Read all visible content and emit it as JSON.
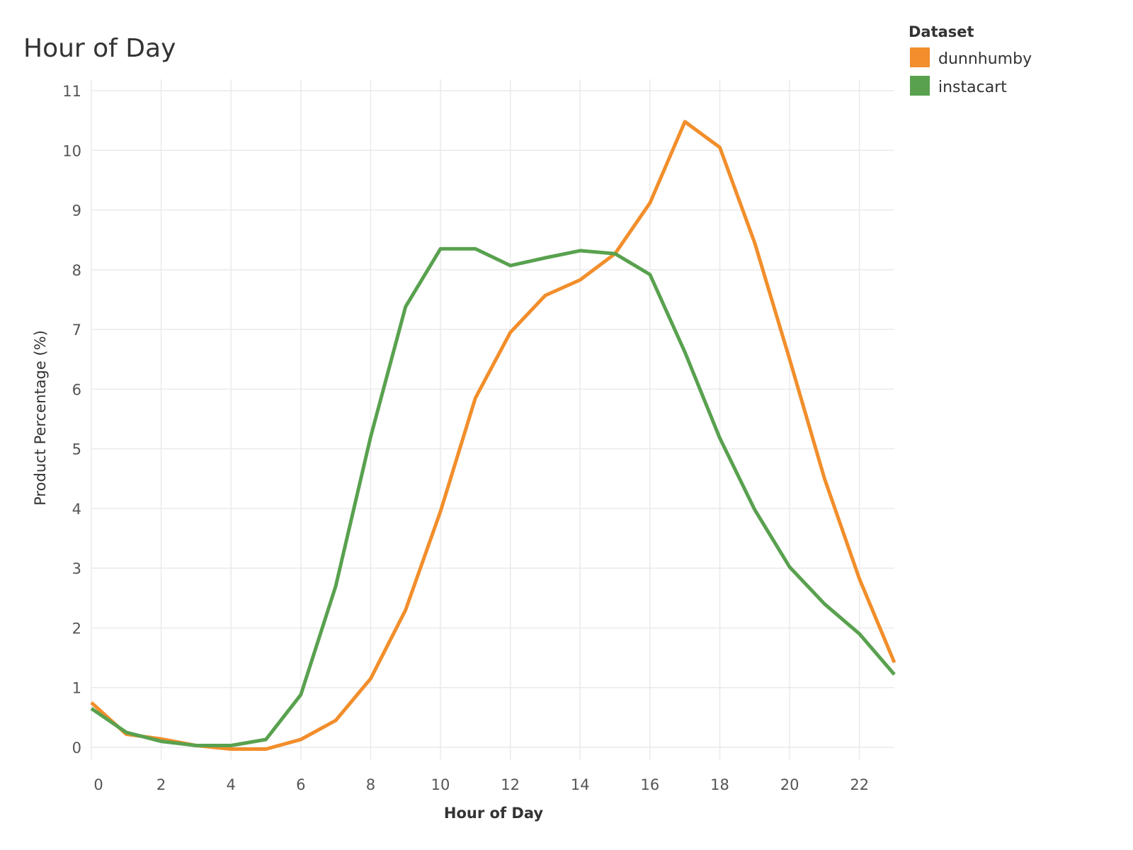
{
  "chart_data": {
    "type": "line",
    "title": "Hour of Day",
    "xlabel": "Hour of Day",
    "ylabel": "Product Percentage (%)",
    "x": [
      0,
      1,
      2,
      3,
      4,
      5,
      6,
      7,
      8,
      9,
      10,
      11,
      12,
      13,
      14,
      15,
      16,
      17,
      18,
      19,
      20,
      21,
      22,
      23
    ],
    "x_ticks": [
      0,
      2,
      4,
      6,
      8,
      10,
      12,
      14,
      16,
      18,
      20,
      22
    ],
    "x_tick_labels": [
      "0",
      "2",
      "4",
      "6",
      "8",
      "10",
      "12",
      "14",
      "16",
      "18",
      "20",
      "22"
    ],
    "xlim": [
      0,
      23
    ],
    "y_ticks": [
      0,
      1,
      2,
      3,
      4,
      5,
      6,
      7,
      8,
      9,
      10,
      11
    ],
    "y_tick_labels": [
      "0",
      "1",
      "2",
      "3",
      "4",
      "5",
      "6",
      "7",
      "8",
      "9",
      "10",
      "11"
    ],
    "ylim": [
      -0.2,
      11.2
    ],
    "grid": true,
    "legend": {
      "title": "Dataset",
      "placement": "top-right"
    },
    "series": [
      {
        "name": "dunnhumby",
        "color": "#f28e2b",
        "values": [
          0.75,
          0.22,
          0.14,
          0.03,
          -0.03,
          -0.03,
          0.13,
          0.45,
          1.15,
          2.3,
          3.95,
          5.85,
          6.95,
          7.57,
          7.83,
          8.27,
          9.12,
          10.48,
          10.05,
          8.45,
          6.5,
          4.5,
          2.82,
          1.42
        ]
      },
      {
        "name": "instacart",
        "color": "#59a14f",
        "values": [
          0.65,
          0.25,
          0.1,
          0.03,
          0.03,
          0.13,
          0.88,
          2.7,
          5.2,
          7.38,
          8.35,
          8.35,
          8.07,
          8.2,
          8.32,
          8.27,
          7.92,
          6.62,
          5.18,
          3.98,
          3.02,
          2.4,
          1.9,
          1.22
        ]
      }
    ]
  }
}
